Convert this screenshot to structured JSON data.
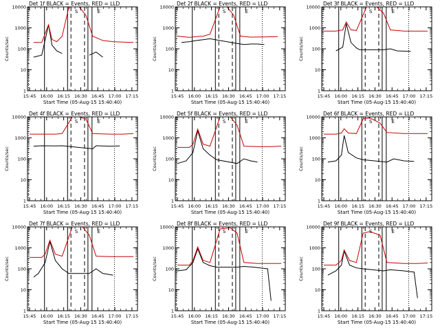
{
  "colors": {
    "events": "#000000",
    "lld": "#cc0000",
    "frame": "#000000"
  },
  "chart_data": [
    {
      "type": "line",
      "title": "Det 1f BLACK = Events, RED = LLD",
      "xlabel": "Start Time (05-Aug-15 15:40:40)",
      "ylabel": "Counts/sec",
      "y_scale": "log",
      "ylim": [
        1,
        10000
      ],
      "xlim": [
        15.69,
        17.31
      ],
      "x_ticks": [
        "15:45",
        "16:00",
        "16:15",
        "16:30",
        "16:45",
        "17:00",
        "17:15"
      ],
      "y_ticks": [
        "1",
        "10",
        "100",
        "1000",
        "10000"
      ],
      "markers": [
        "S",
        "E"
      ],
      "series": [
        {
          "name": "Events",
          "x": [
            15.78,
            15.9,
            16.0,
            16.05,
            16.12,
            16.2,
            16.3,
            16.5,
            16.6,
            16.7,
            16.8
          ],
          "y": [
            40,
            50,
            1400,
            150,
            80,
            60,
            "",
            null,
            50,
            70,
            40
          ]
        },
        {
          "name": "LLD",
          "x": [
            15.78,
            15.9,
            16.0,
            16.05,
            16.12,
            16.2,
            16.3,
            16.45,
            16.55,
            16.65,
            16.8,
            16.95,
            17.1,
            17.25
          ],
          "y": [
            200,
            200,
            1400,
            280,
            220,
            400,
            10000,
            10000,
            4000,
            400,
            250,
            220,
            210,
            200
          ]
        }
      ]
    },
    {
      "type": "line",
      "title": "Det 2f BLACK = Events, RED = LLD",
      "xlabel": "Start Time (05-Aug-15 15:40:40)",
      "ylabel": "Counts/sec",
      "y_scale": "log",
      "ylim": [
        1,
        10000
      ],
      "xlim": [
        15.69,
        17.31
      ],
      "x_ticks": [
        "15:45",
        "16:00",
        "16:15",
        "16:30",
        "16:45",
        "17:00",
        "17:15"
      ],
      "y_ticks": [
        "1",
        "10",
        "100",
        "1000",
        "10000"
      ],
      "markers": [
        "S",
        "E"
      ],
      "series": [
        {
          "name": "Events",
          "x": [
            15.78,
            15.9,
            16.0,
            16.1,
            16.2,
            16.6,
            16.7,
            16.8,
            16.9,
            17.0
          ],
          "y": [
            200,
            220,
            250,
            270,
            300,
            180,
            160,
            170,
            170,
            160
          ]
        },
        {
          "name": "LLD",
          "x": [
            15.72,
            15.9,
            16.0,
            16.1,
            16.2,
            16.35,
            16.45,
            16.55,
            16.65,
            16.8,
            17.0,
            17.2
          ],
          "y": [
            400,
            350,
            380,
            400,
            500,
            10000,
            10000,
            4000,
            400,
            360,
            370,
            380
          ]
        }
      ]
    },
    {
      "type": "line",
      "title": "Det 3f BLACK = Events, RED = LLD",
      "xlabel": "Start Time (05-Aug-15 15:40:40)",
      "ylabel": "Counts/sec",
      "y_scale": "log",
      "ylim": [
        1,
        10000
      ],
      "xlim": [
        15.69,
        17.31
      ],
      "x_ticks": [
        "15:45",
        "16:00",
        "16:15",
        "16:30",
        "16:45",
        "17:00",
        "17:15"
      ],
      "y_ticks": [
        "1",
        "10",
        "100",
        "1000",
        "10000"
      ],
      "markers": [
        "S",
        "E"
      ],
      "series": [
        {
          "name": "Events",
          "x": [
            15.9,
            16.0,
            16.05,
            16.12,
            16.2,
            16.25,
            16.6,
            16.7,
            16.8,
            17.0
          ],
          "y": [
            80,
            120,
            1600,
            200,
            110,
            90,
            90,
            100,
            80,
            75
          ]
        },
        {
          "name": "LLD",
          "x": [
            15.72,
            15.9,
            16.0,
            16.05,
            16.12,
            16.2,
            16.35,
            16.5,
            16.6,
            16.7,
            16.9,
            17.1,
            17.25
          ],
          "y": [
            700,
            700,
            800,
            1900,
            800,
            750,
            10000,
            10000,
            5000,
            800,
            700,
            700,
            700
          ]
        }
      ]
    },
    {
      "type": "line",
      "title": "Det 4f BLACK = Events, RED = LLD",
      "xlabel": "Start Time (05-Aug-15 15:40:40)",
      "ylabel": "Counts/sec",
      "y_scale": "log",
      "ylim": [
        1,
        10000
      ],
      "xlim": [
        15.69,
        17.31
      ],
      "x_ticks": [
        "15:45",
        "16:00",
        "16:15",
        "16:30",
        "16:45",
        "17:00",
        "17:15"
      ],
      "y_ticks": [
        "1",
        "10",
        "100",
        "1000",
        "10000"
      ],
      "markers": [
        "S",
        "E"
      ],
      "series": [
        {
          "name": "Events",
          "x": [
            15.78,
            15.9,
            16.1,
            16.2,
            16.65,
            16.7,
            16.9,
            17.05
          ],
          "y": [
            400,
            420,
            410,
            420,
            300,
            420,
            400,
            410
          ]
        },
        {
          "name": "LLD",
          "x": [
            15.72,
            15.9,
            16.1,
            16.2,
            16.35,
            16.45,
            16.55,
            16.65,
            16.9,
            17.1,
            17.25
          ],
          "y": [
            1500,
            1500,
            1500,
            1600,
            10000,
            10000,
            8000,
            1600,
            1500,
            1500,
            1600
          ]
        }
      ]
    },
    {
      "type": "line",
      "title": "Det 5f BLACK = Events, RED = LLD",
      "xlabel": "Start Time (05-Aug-15 15:40:40)",
      "ylabel": "Counts/sec",
      "y_scale": "log",
      "ylim": [
        1,
        10000
      ],
      "xlim": [
        15.69,
        17.31
      ],
      "x_ticks": [
        "15:45",
        "16:00",
        "16:15",
        "16:30",
        "16:45",
        "17:00",
        "17:15"
      ],
      "y_ticks": [
        "1",
        "10",
        "100",
        "1000",
        "10000"
      ],
      "markers": [
        "S",
        "E"
      ],
      "series": [
        {
          "name": "Events",
          "x": [
            15.72,
            15.85,
            15.95,
            16.02,
            16.1,
            16.2,
            16.3,
            16.6,
            16.7,
            16.8,
            16.9
          ],
          "y": [
            60,
            80,
            200,
            2200,
            300,
            150,
            90,
            60,
            100,
            80,
            70
          ]
        },
        {
          "name": "LLD",
          "x": [
            15.72,
            15.9,
            15.95,
            16.02,
            16.1,
            16.2,
            16.35,
            16.5,
            16.6,
            16.7,
            16.9,
            17.1,
            17.25
          ],
          "y": [
            350,
            350,
            500,
            2600,
            500,
            400,
            10000,
            10000,
            4000,
            400,
            380,
            380,
            400
          ]
        }
      ]
    },
    {
      "type": "line",
      "title": "Det 6f BLACK = Events, RED = LLD",
      "xlabel": "Start Time (05-Aug-15 15:40:40)",
      "ylabel": "Counts/sec",
      "y_scale": "log",
      "ylim": [
        1,
        10000
      ],
      "xlim": [
        15.69,
        17.31
      ],
      "x_ticks": [
        "15:45",
        "16:00",
        "16:15",
        "16:30",
        "16:45",
        "17:00",
        "17:15"
      ],
      "y_ticks": [
        "1",
        "10",
        "100",
        "1000",
        "10000"
      ],
      "markers": [
        "S",
        "E"
      ],
      "series": [
        {
          "name": "Events",
          "x": [
            15.78,
            15.9,
            15.98,
            16.02,
            16.08,
            16.2,
            16.3,
            16.65,
            16.75,
            16.9,
            17.05
          ],
          "y": [
            70,
            80,
            150,
            1300,
            200,
            110,
            90,
            70,
            100,
            80,
            75
          ]
        },
        {
          "name": "LLD",
          "x": [
            15.72,
            15.9,
            15.98,
            16.02,
            16.08,
            16.2,
            16.3,
            16.4,
            16.55,
            16.65,
            16.9,
            17.1,
            17.25
          ],
          "y": [
            1500,
            1500,
            1700,
            2700,
            1700,
            1600,
            8000,
            9000,
            5000,
            1800,
            1600,
            1600,
            1600
          ]
        }
      ]
    },
    {
      "type": "line",
      "title": "Det 7f BLACK = Events, RED = LLD",
      "xlabel": "Start Time (05-Aug-15 15:40:40)",
      "ylabel": "Counts/sec",
      "y_scale": "log",
      "ylim": [
        1,
        10000
      ],
      "xlim": [
        15.69,
        17.31
      ],
      "x_ticks": [
        "15:45",
        "16:00",
        "16:15",
        "16:30",
        "16:45",
        "17:00",
        "17:15"
      ],
      "y_ticks": [
        "1",
        "10",
        "100",
        "1000",
        "10000"
      ],
      "markers": [
        "S",
        "E"
      ],
      "series": [
        {
          "name": "Events",
          "x": [
            15.78,
            15.85,
            15.95,
            16.02,
            16.1,
            16.2,
            16.3,
            16.6,
            16.7,
            16.8,
            16.95
          ],
          "y": [
            40,
            60,
            200,
            2000,
            250,
            100,
            60,
            60,
            100,
            60,
            50
          ]
        },
        {
          "name": "LLD",
          "x": [
            15.72,
            15.9,
            15.95,
            16.02,
            16.1,
            16.2,
            16.35,
            16.5,
            16.6,
            16.7,
            16.9,
            17.1,
            17.25
          ],
          "y": [
            350,
            350,
            500,
            2300,
            500,
            400,
            10000,
            10000,
            4000,
            400,
            380,
            380,
            380
          ]
        }
      ]
    },
    {
      "type": "line",
      "title": "Det 8f BLACK = Events, RED = LLD",
      "xlabel": "Start Time (05-Aug-15 15:40:40)",
      "ylabel": "Counts/sec",
      "y_scale": "log",
      "ylim": [
        1,
        10000
      ],
      "xlim": [
        15.69,
        17.31
      ],
      "x_ticks": [
        "15:45",
        "16:00",
        "16:15",
        "16:30",
        "16:45",
        "17:00",
        "17:15"
      ],
      "y_ticks": [
        "1",
        "10",
        "100",
        "1000",
        "10000"
      ],
      "markers": [
        "S",
        "E"
      ],
      "series": [
        {
          "name": "Events",
          "x": [
            15.72,
            15.85,
            15.95,
            16.02,
            16.1,
            16.2,
            16.3,
            16.6,
            16.7,
            16.85,
            17.05,
            17.1
          ],
          "y": [
            80,
            90,
            200,
            900,
            200,
            140,
            120,
            120,
            130,
            120,
            100,
            3
          ]
        },
        {
          "name": "LLD",
          "x": [
            15.72,
            15.9,
            15.95,
            16.02,
            16.1,
            16.2,
            16.35,
            16.5,
            16.6,
            16.7,
            16.9,
            17.1,
            17.25
          ],
          "y": [
            150,
            150,
            250,
            1100,
            250,
            200,
            8000,
            9000,
            5000,
            200,
            180,
            180,
            180
          ]
        }
      ]
    },
    {
      "type": "line",
      "title": "Det 9f BLACK = Events, RED = LLD",
      "xlabel": "Start Time (05-Aug-15 15:40:40)",
      "ylabel": "Counts/sec",
      "y_scale": "log",
      "ylim": [
        1,
        10000
      ],
      "xlim": [
        15.69,
        17.31
      ],
      "x_ticks": [
        "15:45",
        "16:00",
        "16:15",
        "16:30",
        "16:45",
        "17:00",
        "17:15"
      ],
      "y_ticks": [
        "1",
        "10",
        "100",
        "1000",
        "10000"
      ],
      "markers": [
        "S",
        "E"
      ],
      "series": [
        {
          "name": "Events",
          "x": [
            15.78,
            15.9,
            15.98,
            16.02,
            16.1,
            16.2,
            16.3,
            16.6,
            16.7,
            16.9,
            17.05,
            17.1
          ],
          "y": [
            50,
            80,
            150,
            700,
            150,
            110,
            100,
            80,
            90,
            80,
            70,
            4
          ]
        },
        {
          "name": "LLD",
          "x": [
            15.72,
            15.9,
            15.98,
            16.02,
            16.1,
            16.2,
            16.3,
            16.4,
            16.55,
            16.65,
            16.9,
            17.1,
            17.25
          ],
          "y": [
            150,
            150,
            250,
            800,
            250,
            200,
            5000,
            6000,
            4000,
            200,
            180,
            180,
            190
          ]
        }
      ]
    }
  ]
}
